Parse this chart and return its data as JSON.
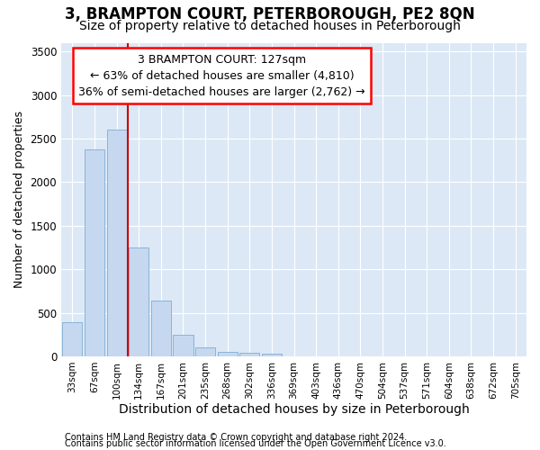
{
  "title": "3, BRAMPTON COURT, PETERBOROUGH, PE2 8QN",
  "subtitle": "Size of property relative to detached houses in Peterborough",
  "xlabel": "Distribution of detached houses by size in Peterborough",
  "ylabel": "Number of detached properties",
  "categories": [
    "33sqm",
    "67sqm",
    "100sqm",
    "134sqm",
    "167sqm",
    "201sqm",
    "235sqm",
    "268sqm",
    "302sqm",
    "336sqm",
    "369sqm",
    "403sqm",
    "436sqm",
    "470sqm",
    "504sqm",
    "537sqm",
    "571sqm",
    "604sqm",
    "638sqm",
    "672sqm",
    "705sqm"
  ],
  "values": [
    390,
    2380,
    2600,
    1250,
    640,
    250,
    105,
    55,
    45,
    35,
    0,
    0,
    0,
    0,
    0,
    0,
    0,
    0,
    0,
    0,
    0
  ],
  "bar_color": "#c5d8f0",
  "bar_edgecolor": "#8ab4d8",
  "annotation_line1": "3 BRAMPTON COURT: 127sqm",
  "annotation_line2": "← 63% of detached houses are smaller (4,810)",
  "annotation_line3": "36% of semi-detached houses are larger (2,762) →",
  "annotation_box_color": "white",
  "annotation_box_edgecolor": "red",
  "red_line_color": "#cc0000",
  "ylim": [
    0,
    3600
  ],
  "yticks": [
    0,
    500,
    1000,
    1500,
    2000,
    2500,
    3000,
    3500
  ],
  "footer1": "Contains HM Land Registry data © Crown copyright and database right 2024.",
  "footer2": "Contains public sector information licensed under the Open Government Licence v3.0.",
  "bg_color": "#ffffff",
  "plot_bg_color": "#dce8f5",
  "grid_color": "white",
  "title_fontsize": 12,
  "subtitle_fontsize": 10,
  "xlabel_fontsize": 10,
  "ylabel_fontsize": 9,
  "footer_fontsize": 7,
  "red_line_x": 2.5
}
